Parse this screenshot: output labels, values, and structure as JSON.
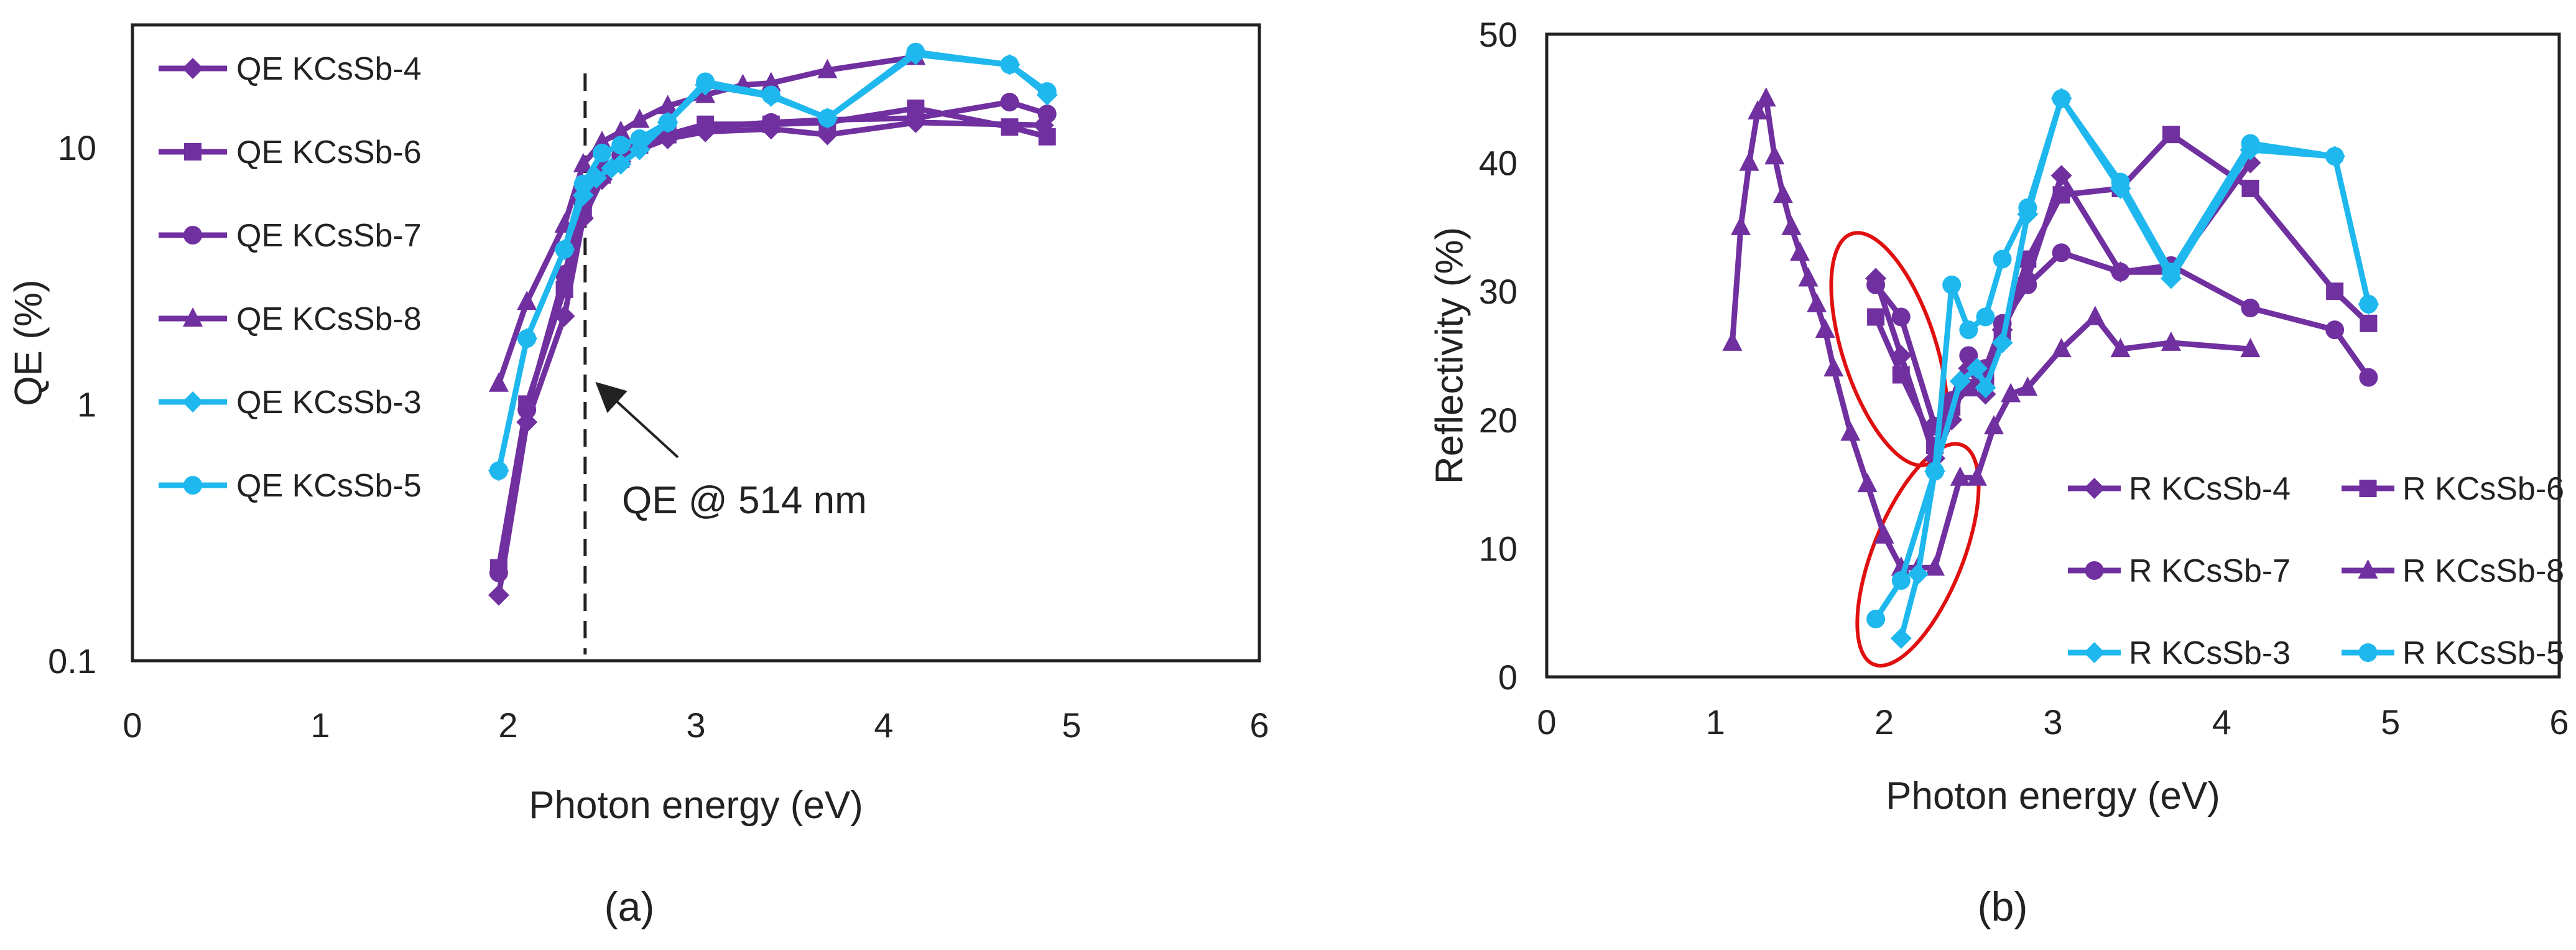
{
  "colors": {
    "purple": "#7030A0",
    "cyan": "#1FB8EE",
    "annotation": "#e01010",
    "axis": "#222222"
  },
  "panel_labels": [
    "(a)",
    "(b)"
  ],
  "chart_data": [
    {
      "type": "line",
      "id": "a",
      "ylog": true,
      "xlabel": "Photon energy (eV)",
      "ylabel": "QE (%)",
      "xlim": [
        0,
        6
      ],
      "ylim": [
        0.1,
        30
      ],
      "xticks": [
        0,
        1,
        2,
        3,
        4,
        5,
        6
      ],
      "yticks": [
        0.1,
        1,
        10
      ],
      "ytick_labels": [
        "0.1",
        "1",
        "10"
      ],
      "legend_position": "top-left",
      "annotation": {
        "text": "QE @ 514 nm",
        "x": 2.41
      },
      "series": [
        {
          "name": "QE KCsSb-4",
          "color": "purple",
          "marker": "diamond",
          "x": [
            1.95,
            2.1,
            2.3,
            2.4,
            2.5,
            2.6,
            2.7,
            2.85,
            3.05,
            3.4,
            3.7,
            4.17,
            4.85
          ],
          "y": [
            0.18,
            0.85,
            2.2,
            5.3,
            7.5,
            8.8,
            9.8,
            10.8,
            11.5,
            11.8,
            11.2,
            12.5,
            12.2
          ]
        },
        {
          "name": "QE KCsSb-6",
          "color": "purple",
          "marker": "square",
          "x": [
            1.95,
            2.1,
            2.3,
            2.4,
            2.5,
            2.6,
            2.7,
            2.85,
            3.05,
            3.4,
            3.7,
            4.17,
            4.67,
            4.87
          ],
          "y": [
            0.23,
            1.0,
            2.8,
            5.6,
            7.8,
            9.0,
            10.2,
            11.2,
            12.3,
            12.3,
            12.5,
            14.2,
            12.0,
            11.0
          ]
        },
        {
          "name": "QE KCsSb-7",
          "color": "purple",
          "marker": "circle",
          "x": [
            1.95,
            2.1,
            2.3,
            2.4,
            2.5,
            2.6,
            2.7,
            2.85,
            3.05,
            3.4,
            3.7,
            4.17,
            4.67,
            4.87
          ],
          "y": [
            0.22,
            0.95,
            3.2,
            6.0,
            8.3,
            9.3,
            10.3,
            11.3,
            12.0,
            12.5,
            12.8,
            13.0,
            15.0,
            13.5
          ]
        },
        {
          "name": "QE KCsSb-8",
          "color": "purple",
          "marker": "triangle",
          "x": [
            1.95,
            2.1,
            2.3,
            2.4,
            2.5,
            2.6,
            2.7,
            2.85,
            3.05,
            3.25,
            3.4,
            3.7,
            4.17
          ],
          "y": [
            1.2,
            2.5,
            5.0,
            8.6,
            10.5,
            11.5,
            12.8,
            14.5,
            16.0,
            17.5,
            17.8,
            20.0,
            22.5
          ]
        },
        {
          "name": "QE KCsSb-3",
          "color": "cyan",
          "marker": "diamond",
          "x": [
            1.95,
            2.1,
            2.3,
            2.4,
            2.47,
            2.55,
            2.6,
            2.7,
            2.85,
            3.05,
            3.4,
            3.7,
            4.17,
            4.67,
            4.87
          ],
          "y": [
            0.55,
            1.8,
            4.0,
            6.5,
            7.6,
            8.3,
            8.6,
            9.8,
            12.5,
            17.5,
            15.8,
            13.0,
            23.0,
            21.0,
            16.0
          ]
        },
        {
          "name": "QE KCsSb-5",
          "color": "cyan",
          "marker": "circle",
          "x": [
            1.95,
            2.1,
            2.3,
            2.4,
            2.5,
            2.6,
            2.7,
            2.85,
            3.05,
            3.4,
            3.7,
            4.17,
            4.67,
            4.87
          ],
          "y": [
            0.55,
            1.8,
            4.0,
            7.2,
            9.5,
            10.2,
            10.8,
            12.5,
            18.0,
            16.0,
            13.0,
            23.5,
            21.0,
            16.5
          ]
        }
      ]
    },
    {
      "type": "line",
      "id": "b",
      "ylog": false,
      "xlabel": "Photon energy (eV)",
      "ylabel": "Reflectivity (%)",
      "xlim": [
        0,
        6
      ],
      "ylim": [
        0,
        50
      ],
      "xticks": [
        0,
        1,
        2,
        3,
        4,
        5,
        6
      ],
      "yticks": [
        0,
        10,
        20,
        30,
        40,
        50
      ],
      "legend_position": "bottom-right",
      "annotations": [
        "red-ellipse-upper",
        "red-ellipse-lower"
      ],
      "series": [
        {
          "name": "R KCsSb-4",
          "color": "purple",
          "marker": "diamond",
          "x": [
            1.95,
            2.1,
            2.3,
            2.4,
            2.5,
            2.6,
            2.7,
            2.85,
            3.05,
            3.4,
            3.7,
            4.17
          ],
          "y": [
            31,
            25,
            17,
            20,
            24,
            22,
            27,
            31,
            39,
            31.5,
            31.5,
            40
          ]
        },
        {
          "name": "R KCsSb-6",
          "color": "purple",
          "marker": "square",
          "x": [
            1.95,
            2.1,
            2.3,
            2.4,
            2.5,
            2.6,
            2.7,
            2.85,
            3.05,
            3.4,
            3.7,
            4.17,
            4.67,
            4.87
          ],
          "y": [
            28,
            23.5,
            18,
            21,
            22.5,
            23,
            26.5,
            32.5,
            37.5,
            38,
            42.2,
            38,
            30,
            27.5
          ]
        },
        {
          "name": "R KCsSb-7",
          "color": "purple",
          "marker": "circle",
          "x": [
            1.95,
            2.1,
            2.3,
            2.4,
            2.5,
            2.6,
            2.7,
            2.85,
            3.05,
            3.4,
            3.7,
            4.17,
            4.67,
            4.87
          ],
          "y": [
            30.5,
            28,
            19.5,
            21.5,
            25,
            24,
            27.5,
            30.5,
            33,
            31.5,
            32,
            28.7,
            27,
            23.3
          ]
        },
        {
          "name": "R KCsSb-8",
          "color": "purple",
          "marker": "triangle",
          "x": [
            1.1,
            1.15,
            1.2,
            1.25,
            1.3,
            1.35,
            1.4,
            1.45,
            1.5,
            1.55,
            1.6,
            1.65,
            1.7,
            1.8,
            1.9,
            2.0,
            2.1,
            2.2,
            2.3,
            2.45,
            2.55,
            2.65,
            2.75,
            2.85,
            3.05,
            3.25,
            3.4,
            3.7,
            4.17
          ],
          "y": [
            26,
            35,
            40,
            44,
            45,
            40.5,
            37.5,
            35,
            33,
            31,
            29,
            27,
            24,
            19,
            15,
            11,
            8.5,
            8.5,
            8.5,
            15.5,
            15.5,
            19.5,
            22,
            22.5,
            25.5,
            28,
            25.5,
            26,
            25.5
          ]
        },
        {
          "name": "R KCsSb-3",
          "color": "cyan",
          "marker": "diamond",
          "x": [
            2.1,
            2.2,
            2.3,
            2.45,
            2.55,
            2.6,
            2.7,
            2.85,
            3.05,
            3.4,
            3.7,
            4.17,
            4.67,
            4.87
          ],
          "y": [
            3,
            8,
            16,
            23,
            24,
            22.5,
            26,
            36,
            45,
            38,
            31,
            41,
            40.5,
            29
          ]
        },
        {
          "name": "R KCsSb-5",
          "color": "cyan",
          "marker": "circle",
          "x": [
            1.95,
            2.1,
            2.3,
            2.4,
            2.5,
            2.6,
            2.7,
            2.85,
            3.05,
            3.4,
            3.7,
            4.17,
            4.67,
            4.87
          ],
          "y": [
            4.5,
            7.5,
            16,
            30.5,
            27,
            28,
            32.5,
            36.5,
            45,
            38.5,
            31.5,
            41.5,
            40.5,
            29
          ]
        }
      ]
    }
  ]
}
